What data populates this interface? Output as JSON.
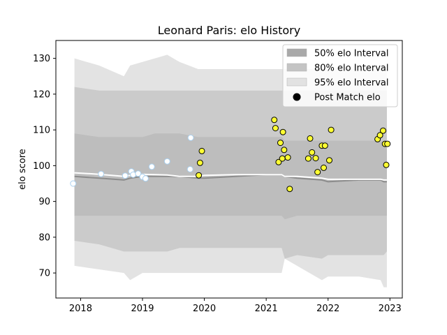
{
  "chart_data": {
    "type": "scatter",
    "title": "Leonard Paris: elo History",
    "xlabel": "",
    "ylabel": "elo score",
    "xlim": [
      2017.6,
      2023.2
    ],
    "ylim": [
      63,
      135
    ],
    "xticks": [
      2018,
      2019,
      2020,
      2021,
      2022,
      2023
    ],
    "xtick_labels": [
      "2018",
      "2019",
      "2020",
      "2021",
      "2022",
      "2023"
    ],
    "yticks": [
      70,
      80,
      90,
      100,
      110,
      120,
      130
    ],
    "ytick_labels": [
      "70",
      "80",
      "90",
      "100",
      "110",
      "120",
      "130"
    ],
    "legend_position": "top-right",
    "legend": [
      {
        "label": "50% elo Interval",
        "color": "#a9a9a9"
      },
      {
        "label": "80% elo Interval",
        "color": "#c4c4c4"
      },
      {
        "label": "95% elo Interval",
        "color": "#e2e2e2"
      },
      {
        "label": "Post Match elo",
        "color": "#000000"
      }
    ],
    "colors": {
      "band95": "#e3e3e3",
      "band80": "#cbcbcb",
      "band50": "#bdbdbd",
      "median": "#8c8c8c",
      "mean": "#ffffff",
      "point_fill": "#ffff33",
      "point_edge": "#000000",
      "faded_fill": "#ffffff",
      "faded_edge": "#a9cfee"
    },
    "band_x": [
      2017.9,
      2018.3,
      2018.7,
      2018.8,
      2019.0,
      2019.2,
      2019.4,
      2019.6,
      2019.9,
      2020.0,
      2020.5,
      2021.0,
      2021.25,
      2021.3,
      2021.5,
      2021.9,
      2022.0,
      2022.5,
      2022.85,
      2022.9,
      2022.95
    ],
    "band95_upper": [
      130,
      128,
      125,
      128,
      129,
      130,
      131,
      129,
      127,
      127,
      127,
      127,
      127,
      127,
      127,
      127,
      127,
      127,
      127,
      127,
      127
    ],
    "band95_lower": [
      72,
      71,
      70,
      68,
      70,
      70,
      70,
      70,
      70,
      70,
      70,
      70,
      70,
      74,
      72,
      68,
      69,
      69,
      68,
      66,
      66
    ],
    "band80_upper": [
      122,
      121,
      121,
      121,
      121,
      121,
      121,
      121,
      121,
      121,
      121,
      121,
      121,
      121,
      121,
      121,
      121,
      121,
      121,
      121,
      121
    ],
    "band80_lower": [
      79,
      78,
      76,
      76,
      76,
      76,
      76,
      77,
      77,
      77,
      77,
      77,
      77,
      74,
      75,
      74,
      75,
      75,
      75,
      75,
      76
    ],
    "band50_upper": [
      109,
      108,
      108,
      108,
      108,
      109,
      109,
      109,
      108,
      108,
      108,
      108,
      108,
      107,
      107,
      107,
      107,
      107,
      107,
      106,
      106
    ],
    "band50_lower": [
      86,
      86,
      86,
      86,
      86,
      86,
      86,
      86,
      86,
      86,
      86,
      86,
      86,
      85,
      86,
      86,
      86,
      86,
      86,
      86,
      86
    ],
    "median_line": [
      97,
      96.5,
      96,
      96.5,
      97,
      97,
      97,
      97,
      96.5,
      96.5,
      97,
      97.5,
      97.5,
      97,
      96.5,
      96,
      95.5,
      96,
      96,
      95.5,
      95.5
    ],
    "mean_line": [
      98,
      97.6,
      97,
      97.3,
      97.6,
      97.5,
      97.4,
      97,
      97,
      97.3,
      97.5,
      97.5,
      97.5,
      97,
      97,
      96.5,
      96.2,
      96.2,
      96.2,
      96,
      96
    ],
    "series": [
      {
        "name": "Post Match elo",
        "style": "faded",
        "x": [
          2017.88,
          2018.33,
          2018.72,
          2018.82,
          2018.85,
          2018.93,
          2019.0,
          2019.05,
          2019.15,
          2019.4,
          2019.77,
          2019.78
        ],
        "y": [
          95,
          97.7,
          97.2,
          98.4,
          97.5,
          97.8,
          96.9,
          96.4,
          99.7,
          101.2,
          99,
          107.8
        ]
      },
      {
        "name": "Post Match elo",
        "style": "solid",
        "x": [
          2019.91,
          2019.93,
          2019.96,
          2021.13,
          2021.15,
          2021.2,
          2021.23,
          2021.26,
          2021.27,
          2021.29,
          2021.35,
          2021.38,
          2021.68,
          2021.71,
          2021.74,
          2021.8,
          2021.83,
          2021.9,
          2021.93,
          2021.95,
          2022.02,
          2022.05,
          2022.8,
          2022.84,
          2022.89,
          2022.92,
          2022.94,
          2022.96
        ],
        "y": [
          97.3,
          100.8,
          104.1,
          112.8,
          110.5,
          101,
          106.4,
          102,
          109.4,
          104.4,
          102.3,
          93.5,
          102,
          107.6,
          103.7,
          102.1,
          98.2,
          105.6,
          99.4,
          105.6,
          101.5,
          110,
          107.4,
          108.5,
          109.8,
          106.1,
          100.2,
          106.1
        ]
      }
    ]
  }
}
